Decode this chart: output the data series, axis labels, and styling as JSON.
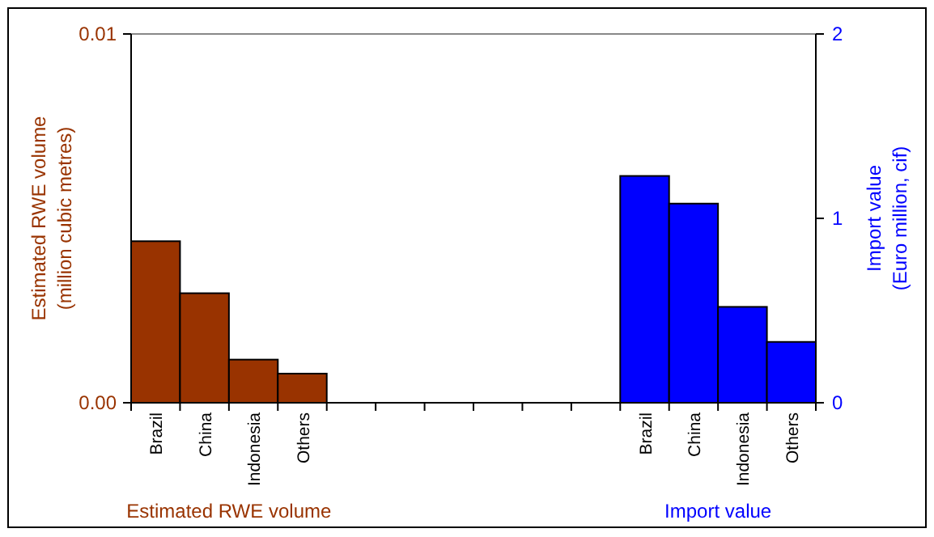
{
  "chart_data": {
    "type": "bar",
    "categories": [
      "Brazil",
      "China",
      "Indonesia",
      "Others",
      null,
      null,
      null,
      null,
      null,
      null,
      "Brazil",
      "China",
      "Indonesia",
      "Others"
    ],
    "series": [
      {
        "name": "Estimated RWE volume",
        "color": "#993300",
        "values": [
          0.00438,
          0.00297,
          0.00117,
          0.00079,
          null,
          null,
          null,
          null,
          null,
          null,
          null,
          null,
          null,
          null
        ]
      },
      {
        "name": "Import value",
        "color": "#0000ff",
        "axis": "y2",
        "values": [
          null,
          null,
          null,
          null,
          null,
          null,
          null,
          null,
          null,
          null,
          1.23,
          1.08,
          0.52,
          0.33
        ]
      }
    ],
    "ylabel": "Estimated RWE volume\n(million cubic metres)",
    "y2label": "Import value\n(Euro million, cif)",
    "ylim": [
      0,
      0.01
    ],
    "yticks": [
      {
        "value": 0,
        "label": "0.00"
      },
      {
        "value": 0.01,
        "label": "0.01"
      }
    ],
    "y2lim": [
      0,
      2
    ],
    "y2ticks": [
      0,
      1,
      2
    ],
    "legend": "bottom"
  }
}
